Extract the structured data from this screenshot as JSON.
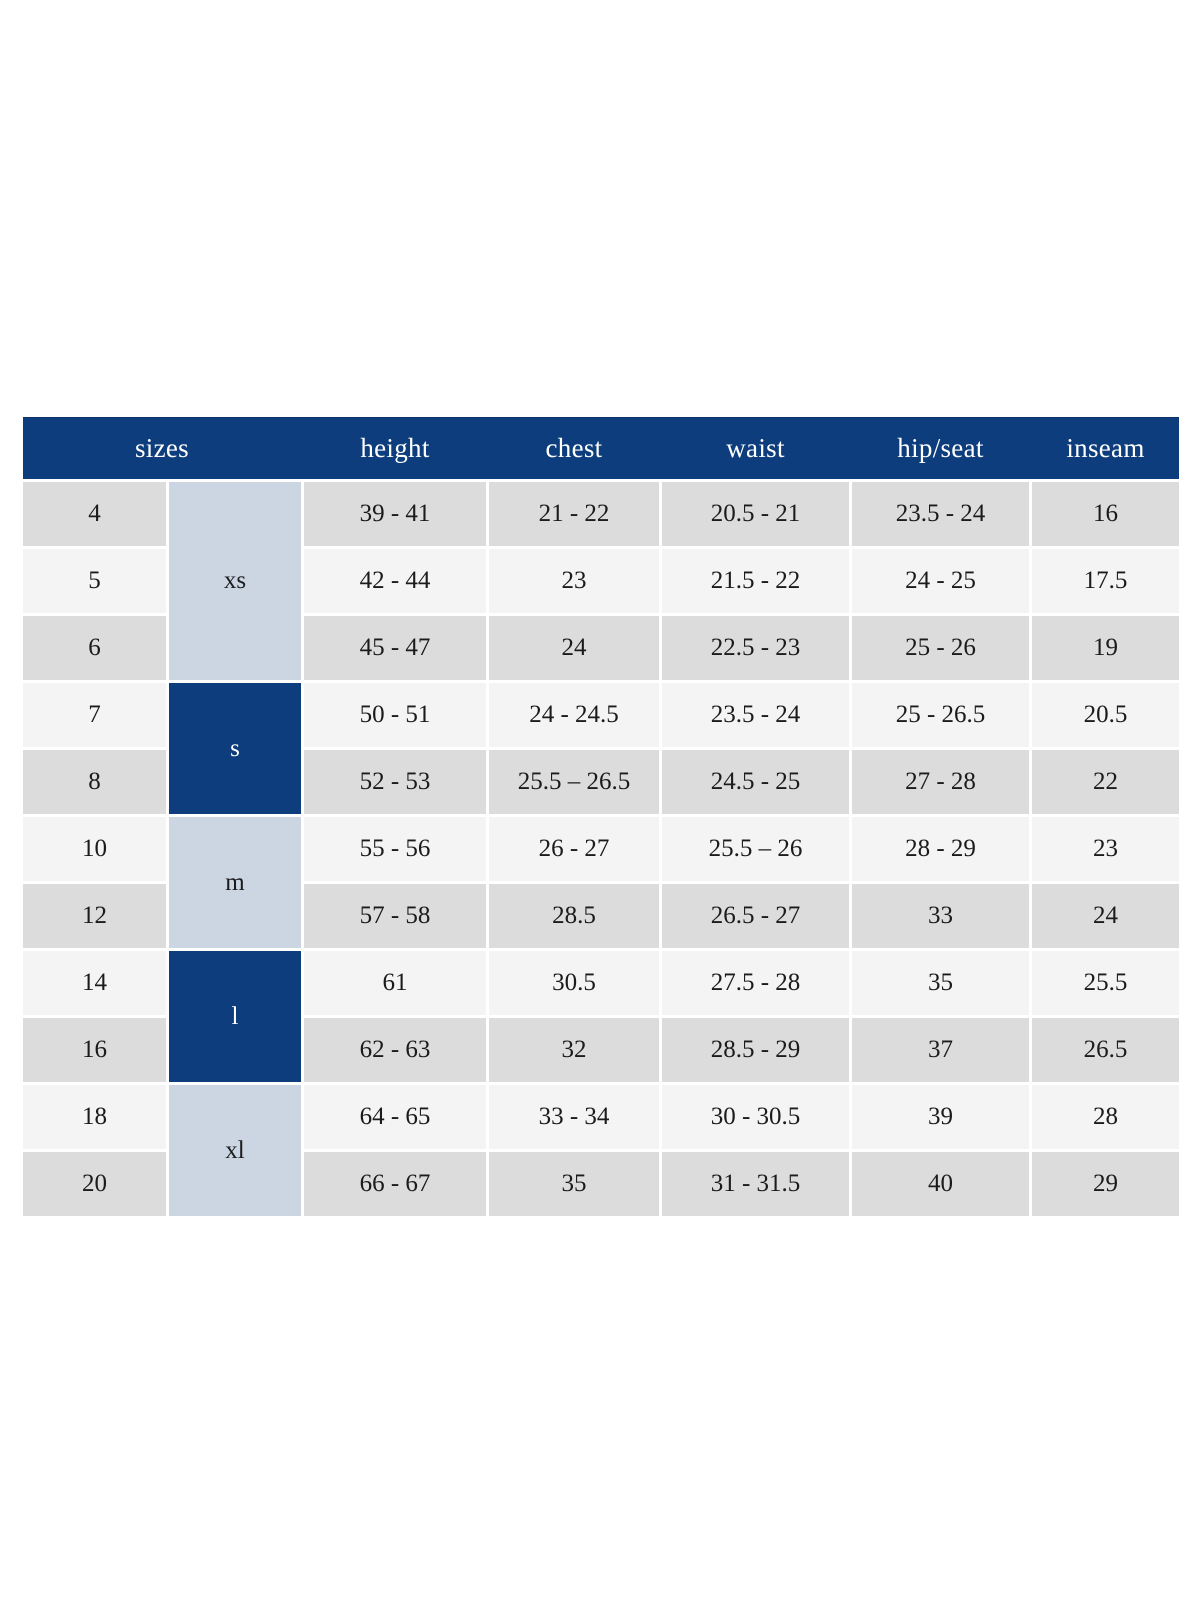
{
  "colors": {
    "header_bg": "#0d3d7c",
    "group_dark_bg": "#0d3d7c",
    "group_light_bg": "#ccd6e3",
    "row_gray": "#dcdcdc",
    "row_light": "#f4f4f4",
    "header_text": "#ffffff",
    "cell_text": "#1b1b1b"
  },
  "table": {
    "headers": {
      "sizes": "sizes",
      "height": "height",
      "chest": "chest",
      "waist": "waist",
      "hip_seat": "hip/seat",
      "inseam": "inseam"
    },
    "groups": [
      {
        "label": "xs",
        "rows": [
          "4",
          "5",
          "6"
        ],
        "style": "light"
      },
      {
        "label": "s",
        "rows": [
          "7",
          "8"
        ],
        "style": "dark"
      },
      {
        "label": "m",
        "rows": [
          "10",
          "12"
        ],
        "style": "light"
      },
      {
        "label": "l",
        "rows": [
          "14",
          "16"
        ],
        "style": "dark"
      },
      {
        "label": "xl",
        "rows": [
          "18",
          "20"
        ],
        "style": "light"
      }
    ],
    "rows": [
      {
        "size": "4",
        "height": "39 - 41",
        "chest": "21 - 22",
        "waist": "20.5 - 21",
        "hip_seat": "23.5 - 24",
        "inseam": "16",
        "shade": "gray"
      },
      {
        "size": "5",
        "height": "42 - 44",
        "chest": "23",
        "waist": "21.5 - 22",
        "hip_seat": "24 - 25",
        "inseam": "17.5",
        "shade": "light"
      },
      {
        "size": "6",
        "height": "45 - 47",
        "chest": "24",
        "waist": "22.5 - 23",
        "hip_seat": "25 - 26",
        "inseam": "19",
        "shade": "gray"
      },
      {
        "size": "7",
        "height": "50 - 51",
        "chest": "24 - 24.5",
        "waist": "23.5 - 24",
        "hip_seat": "25 - 26.5",
        "inseam": "20.5",
        "shade": "light"
      },
      {
        "size": "8",
        "height": "52 - 53",
        "chest": "25.5 – 26.5",
        "waist": "24.5 - 25",
        "hip_seat": "27 - 28",
        "inseam": "22",
        "shade": "gray"
      },
      {
        "size": "10",
        "height": "55 - 56",
        "chest": "26 - 27",
        "waist": "25.5 – 26",
        "hip_seat": "28 - 29",
        "inseam": "23",
        "shade": "light"
      },
      {
        "size": "12",
        "height": "57 - 58",
        "chest": "28.5",
        "waist": "26.5 - 27",
        "hip_seat": "33",
        "inseam": "24",
        "shade": "gray"
      },
      {
        "size": "14",
        "height": "61",
        "chest": "30.5",
        "waist": "27.5 - 28",
        "hip_seat": "35",
        "inseam": "25.5",
        "shade": "light"
      },
      {
        "size": "16",
        "height": "62 - 63",
        "chest": "32",
        "waist": "28.5 - 29",
        "hip_seat": "37",
        "inseam": "26.5",
        "shade": "gray"
      },
      {
        "size": "18",
        "height": "64 - 65",
        "chest": "33 - 34",
        "waist": "30 - 30.5",
        "hip_seat": "39",
        "inseam": "28",
        "shade": "light"
      },
      {
        "size": "20",
        "height": "66 - 67",
        "chest": "35",
        "waist": "31 - 31.5",
        "hip_seat": "40",
        "inseam": "29",
        "shade": "gray"
      }
    ]
  }
}
